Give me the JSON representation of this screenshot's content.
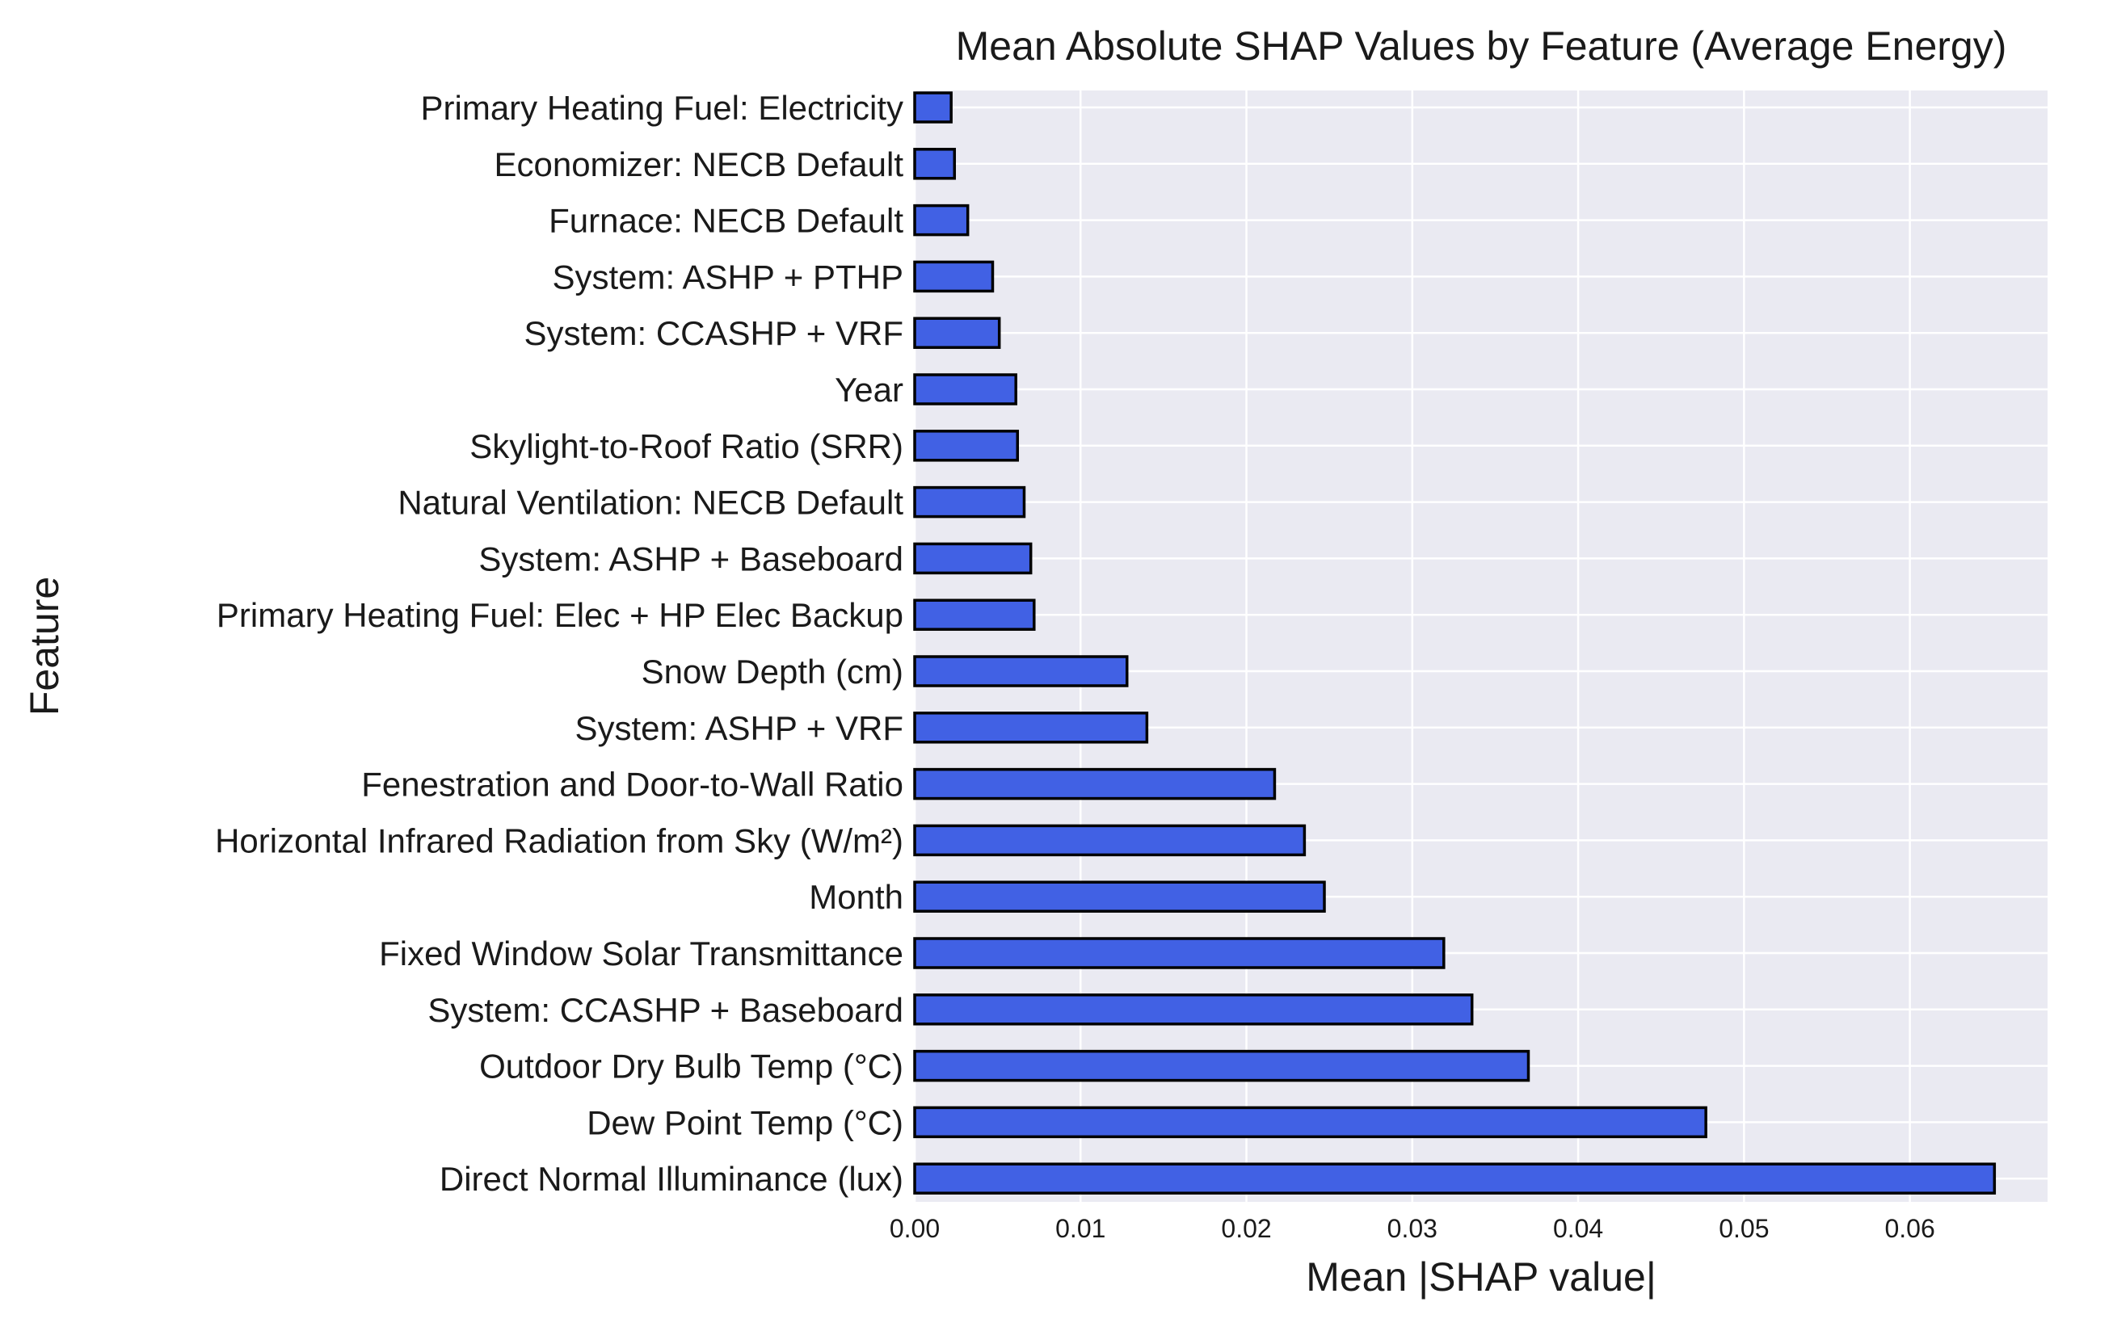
{
  "chart_data": {
    "type": "bar",
    "orientation": "horizontal",
    "title": "Mean Absolute SHAP Values by Feature (Average Energy)",
    "xlabel": "Mean |SHAP value|",
    "ylabel": "Feature",
    "xlim": [
      0.0,
      0.0683
    ],
    "x_ticks": [
      0.0,
      0.01,
      0.02,
      0.03,
      0.04,
      0.05,
      0.06
    ],
    "x_tick_labels": [
      "0.00",
      "0.01",
      "0.02",
      "0.03",
      "0.04",
      "0.05",
      "0.06"
    ],
    "grid": true,
    "colors": {
      "bar": "#4161e4",
      "bar_edge": "#000000",
      "plot_background": "#eaeaf2",
      "grid": "#ffffff"
    },
    "categories": [
      "Primary Heating Fuel: Electricity",
      "Economizer: NECB Default",
      "Furnace: NECB Default",
      "System: ASHP + PTHP",
      "System: CCASHP + VRF",
      "Year",
      "Skylight-to-Roof Ratio (SRR)",
      "Natural Ventilation: NECB Default",
      "System: ASHP + Baseboard",
      "Primary Heating Fuel: Elec + HP Elec Backup",
      "Snow Depth (cm)",
      "System: ASHP + VRF",
      "Fenestration and Door-to-Wall Ratio",
      "Horizontal Infrared Radiation from Sky (W/m²)",
      "Month",
      "Fixed Window Solar Transmittance",
      "System: CCASHP + Baseboard",
      "Outdoor Dry Bulb Temp (°C)",
      "Dew Point Temp (°C)",
      "Direct Normal Illuminance (lux)"
    ],
    "values": [
      0.0022,
      0.0024,
      0.0032,
      0.0047,
      0.0051,
      0.0061,
      0.0062,
      0.0066,
      0.007,
      0.0072,
      0.0128,
      0.014,
      0.0217,
      0.0235,
      0.0247,
      0.0319,
      0.0336,
      0.037,
      0.0477,
      0.0651
    ]
  }
}
